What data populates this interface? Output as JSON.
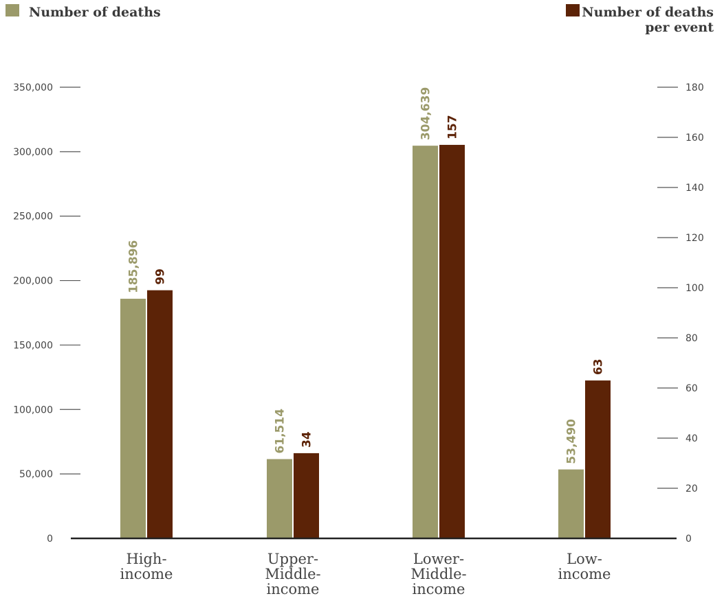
{
  "chart_data": {
    "type": "bar",
    "categories": [
      [
        "High-",
        "income"
      ],
      [
        "Upper-",
        "Middle-",
        "income"
      ],
      [
        "Lower-",
        "Middle-",
        "income"
      ],
      [
        "Low-",
        "income"
      ]
    ],
    "series": [
      {
        "name": "Number of deaths",
        "axis": "left",
        "color": "#9b9a6a",
        "values": [
          185896,
          61514,
          304639,
          53490
        ],
        "labels": [
          "185,896",
          "61,514",
          "304,639",
          "53,490"
        ]
      },
      {
        "name": "Number of deaths per event",
        "axis": "right",
        "color": "#5c2307",
        "values": [
          99,
          34,
          157,
          63
        ],
        "labels": [
          "99",
          "34",
          "157",
          "63"
        ]
      }
    ],
    "y_left": {
      "ylim": [
        0,
        350000
      ],
      "ticks": [
        0,
        50000,
        100000,
        150000,
        200000,
        250000,
        300000,
        350000
      ],
      "tick_labels": [
        "0",
        "50,000",
        "100,000",
        "150,000",
        "200,000",
        "250,000",
        "300,000",
        "350,000"
      ]
    },
    "y_right": {
      "ylim": [
        0,
        180
      ],
      "ticks": [
        0,
        20,
        40,
        60,
        80,
        100,
        120,
        140,
        160,
        180
      ],
      "tick_labels": [
        "0",
        "20",
        "40",
        "60",
        "80",
        "100",
        "120",
        "140",
        "160",
        "180"
      ]
    },
    "legend": [
      {
        "lines": [
          "Number of deaths"
        ],
        "color": "#9b9a6a",
        "position": "top-left"
      },
      {
        "lines": [
          "Number of deaths",
          "per event"
        ],
        "color": "#5c2307",
        "position": "top-right"
      }
    ],
    "grid": false
  }
}
